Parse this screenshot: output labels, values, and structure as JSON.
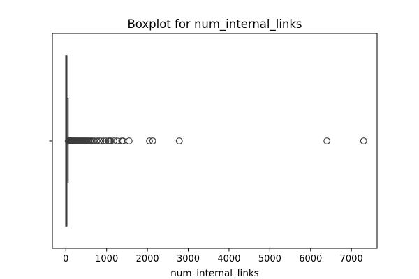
{
  "chart_data": {
    "type": "boxplot",
    "title": "Boxplot for num_internal_links",
    "xlabel": "num_internal_links",
    "ylabel": "",
    "xlim": [
      -330,
      7630
    ],
    "xticks": [
      0,
      1000,
      2000,
      3000,
      4000,
      5000,
      6000,
      7000
    ],
    "xtick_labels": [
      "0",
      "1000",
      "2000",
      "3000",
      "4000",
      "5000",
      "6000",
      "7000"
    ],
    "orientation": "horizontal",
    "stats": {
      "min": 0,
      "q1": 0,
      "median": 0,
      "q3": 25,
      "max": 55
    },
    "outliers": [
      58,
      62,
      66,
      70,
      75,
      80,
      86,
      92,
      100,
      110,
      120,
      130,
      140,
      150,
      165,
      180,
      195,
      210,
      230,
      250,
      270,
      290,
      310,
      330,
      350,
      370,
      390,
      410,
      430,
      450,
      470,
      490,
      510,
      540,
      570,
      600,
      630,
      660,
      700,
      760,
      820,
      860,
      920,
      980,
      1050,
      1080,
      1100,
      1180,
      1250,
      1370,
      1400,
      1550,
      2050,
      2130,
      2780,
      6400,
      7300
    ],
    "grid": false,
    "legend": "none",
    "colors": {
      "box": "#1f77b4",
      "lines": "#3d3d3d"
    }
  }
}
